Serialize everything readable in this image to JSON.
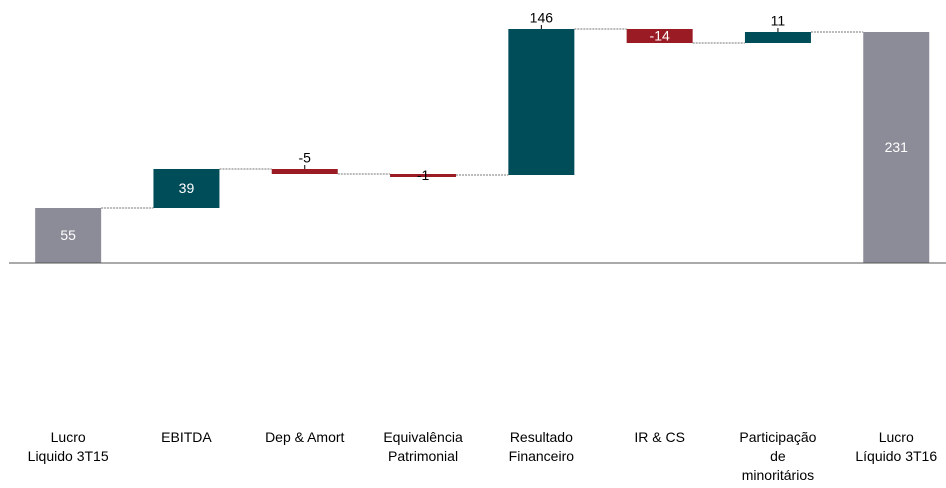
{
  "chart_data": {
    "type": "waterfall",
    "categories": [
      "Lucro\nLiquido 3T15",
      "EBITDA",
      "Dep & Amort",
      "Equivalência\nPatrimonial",
      "Resultado\nFinanceiro",
      "IR & CS",
      "Participação\nde\nminoritários",
      "Lucro\nLíquido 3T16"
    ],
    "values": [
      55,
      39,
      -5,
      -1,
      146,
      -14,
      11,
      231
    ],
    "totals": [
      true,
      false,
      false,
      false,
      false,
      false,
      false,
      true
    ],
    "label_positions": [
      "inside",
      "inside",
      "above",
      "center",
      "above",
      "inside",
      "above",
      "inside"
    ],
    "colors": {
      "total": "#8c8c99",
      "increase": "#004d5a",
      "decrease": "#9b1b24"
    },
    "ylim": [
      0,
      234
    ]
  }
}
